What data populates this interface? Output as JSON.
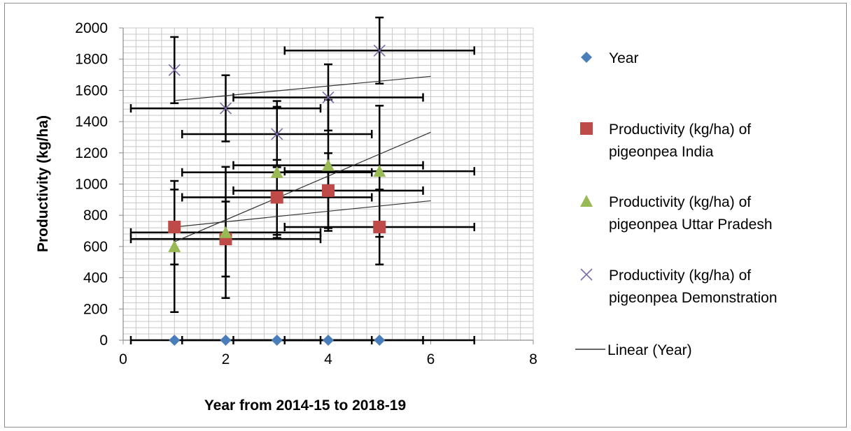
{
  "chart_data": {
    "type": "scatter",
    "title": "",
    "xlabel": "Year from 2014-15 to 2018-19",
    "ylabel": "Productivity (kg/ha)",
    "xlim": [
      0,
      8
    ],
    "ylim": [
      0,
      2000
    ],
    "x_ticks": [
      "0",
      "2",
      "4",
      "6",
      "8"
    ],
    "y_ticks": [
      "0",
      "200",
      "400",
      "600",
      "800",
      "1000",
      "1200",
      "1400",
      "1600",
      "1800",
      "2000"
    ],
    "grid": true,
    "legend_position": "right",
    "series": [
      {
        "name": "Year",
        "marker": "diamond",
        "color": "#4a7ebb",
        "x": [
          1,
          2,
          3,
          4,
          5
        ],
        "y": [
          0,
          0,
          0,
          0,
          0
        ],
        "y_error": 0,
        "x_error": 1.85
      },
      {
        "name": "Productivity (kg/ha) of pigeonpea India",
        "marker": "square",
        "color": "#be4b48",
        "x": [
          1,
          2,
          3,
          4,
          5
        ],
        "y": [
          725,
          648,
          915,
          958,
          725
        ],
        "y_error": 240,
        "x_error": 1.85
      },
      {
        "name": "Productivity (kg/ha) of pigeonpea Uttar Pradesh",
        "marker": "triangle",
        "color": "#98b954",
        "x": [
          1,
          2,
          3,
          4,
          5
        ],
        "y": [
          600,
          690,
          1075,
          1120,
          1082
        ],
        "y_error": 420,
        "x_error": 1.85
      },
      {
        "name": "Productivity (kg/ha) of pigeonpea Demonstration",
        "marker": "x",
        "color": "#7e6ba8",
        "x": [
          1,
          2,
          3,
          4,
          5
        ],
        "y": [
          1730,
          1485,
          1320,
          1555,
          1855
        ],
        "y_error": 212,
        "x_error": 1.85
      }
    ],
    "trendlines": [
      {
        "name": "Linear (Year)",
        "x": [
          1,
          6
        ],
        "y": [
          1535,
          1690
        ]
      },
      {
        "name": "",
        "x": [
          1,
          6
        ],
        "y": [
          630,
          1332
        ]
      },
      {
        "name": "",
        "x": [
          1,
          6
        ],
        "y": [
          725,
          893
        ]
      }
    ],
    "legend_entries": [
      "Year",
      "Productivity (kg/ha) of pigeonpea India",
      "Productivity (kg/ha) of pigeonpea Uttar Pradesh",
      "Productivity (kg/ha) of pigeonpea Demonstration",
      "Linear (Year)"
    ]
  }
}
